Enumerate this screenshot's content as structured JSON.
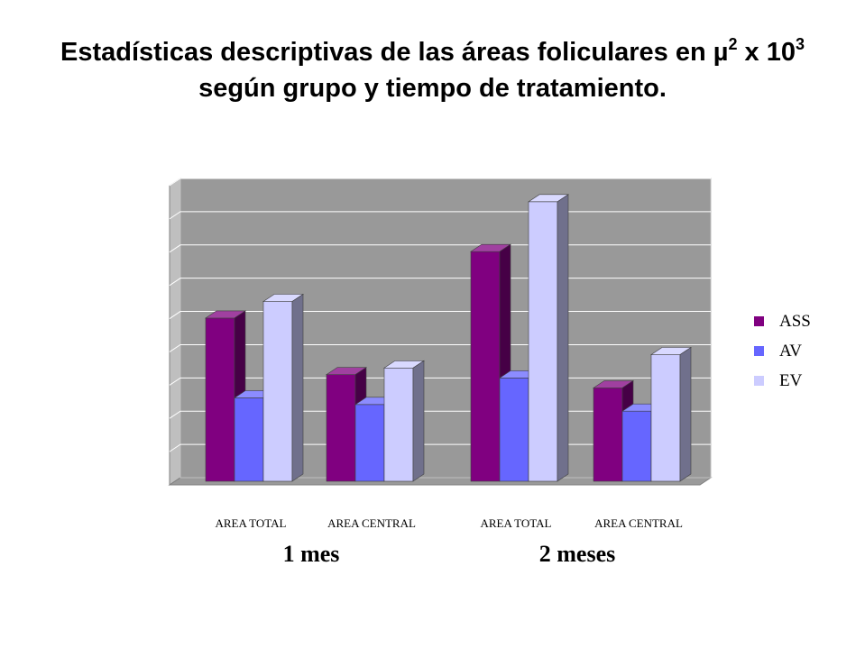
{
  "title": {
    "line1_prefix": "Estadísticas descriptivas de las áreas foliculares en µ",
    "exp1": "2",
    "line1_mid": " x 10",
    "exp2": "3",
    "line2": "según grupo y tiempo de tratamiento."
  },
  "chart_data": {
    "type": "bar",
    "title": "Estadísticas descriptivas de las áreas foliculares en µ2 x 103 según grupo y tiempo de tratamiento.",
    "xlabel": "",
    "ylabel": "",
    "ylim": [
      0,
      9
    ],
    "grid": true,
    "legend_position": "right",
    "categories": [
      "AREA TOTAL",
      "AREA CENTRAL",
      "AREA TOTAL",
      "AREA CENTRAL"
    ],
    "groups": [
      {
        "label": "1 mes",
        "categories": [
          "AREA TOTAL",
          "AREA CENTRAL"
        ]
      },
      {
        "label": "2 meses",
        "categories": [
          "AREA TOTAL",
          "AREA CENTRAL"
        ]
      }
    ],
    "series": [
      {
        "name": "ASS",
        "color": "#800080",
        "values": [
          4.8,
          3.1,
          6.8,
          2.7
        ]
      },
      {
        "name": "AV",
        "color": "#6666ff",
        "values": [
          2.4,
          2.2,
          3.0,
          2.0
        ]
      },
      {
        "name": "EV",
        "color": "#ccccff",
        "values": [
          5.3,
          3.3,
          8.3,
          3.7
        ]
      }
    ]
  }
}
